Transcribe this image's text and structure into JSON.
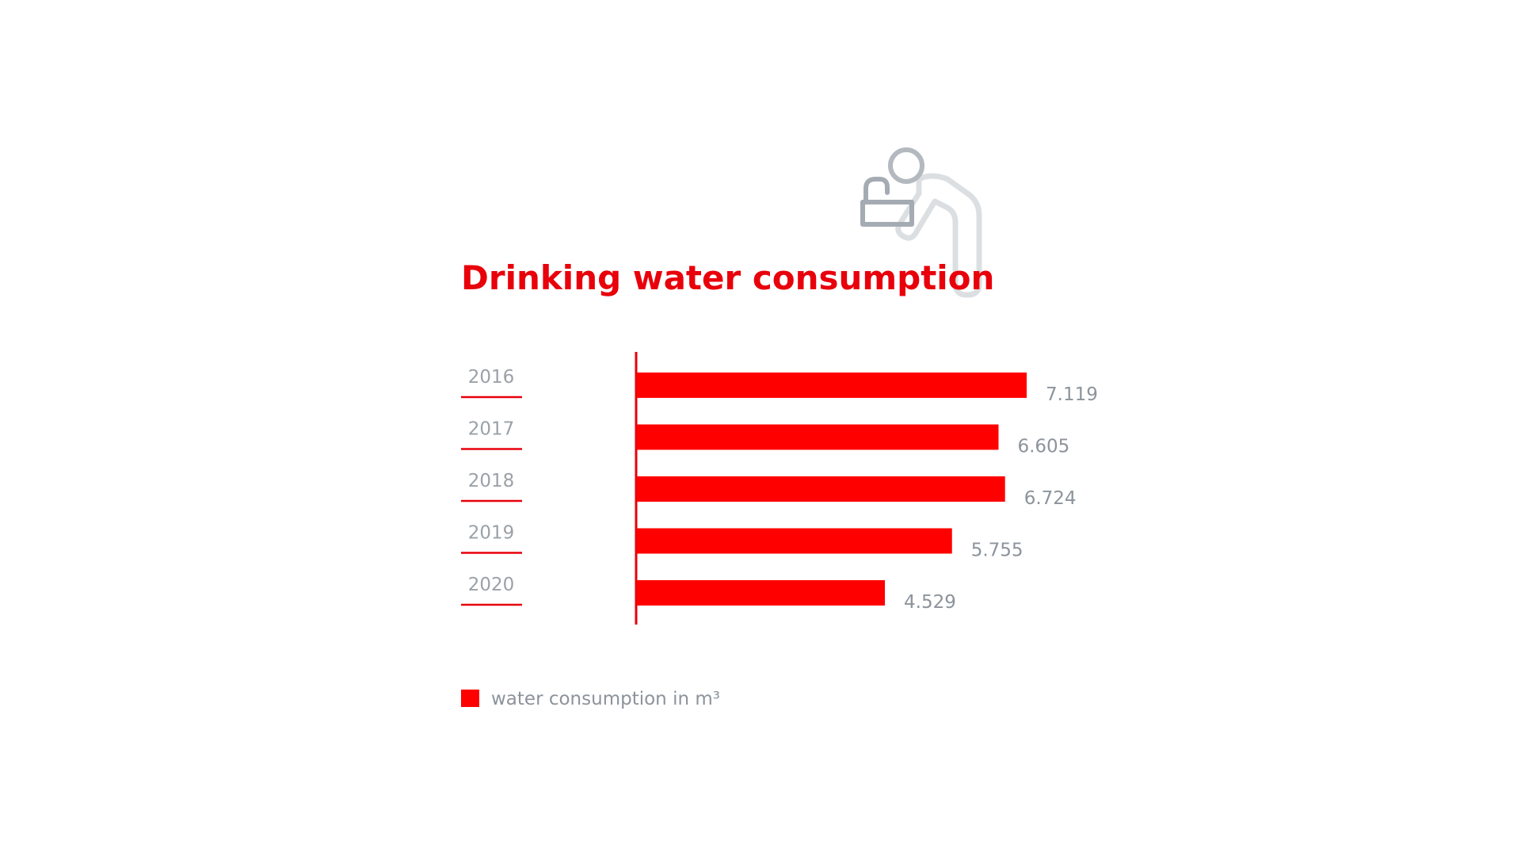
{
  "chart_data": {
    "type": "bar",
    "orientation": "horizontal",
    "title": "Drinking water consumption",
    "categories": [
      "2016",
      "2017",
      "2018",
      "2019",
      "2020"
    ],
    "series": [
      {
        "name": "water consumption in m³",
        "values": [
          7119,
          6605,
          6724,
          5755,
          4529
        ],
        "value_labels": [
          "7.119",
          "6.605",
          "6.724",
          "5.755",
          "4.529"
        ]
      }
    ],
    "xlim": [
      0,
      8000
    ],
    "grid": false,
    "legend": "bottom-left"
  },
  "colors": {
    "bar": "#ff0000",
    "accent": "#e8000b",
    "text_gray": "#8c939b",
    "icon_dark": "#a4abb3",
    "icon_light": "#dcdfe2"
  },
  "icons": [
    "person-drinking-fountain-icon"
  ]
}
